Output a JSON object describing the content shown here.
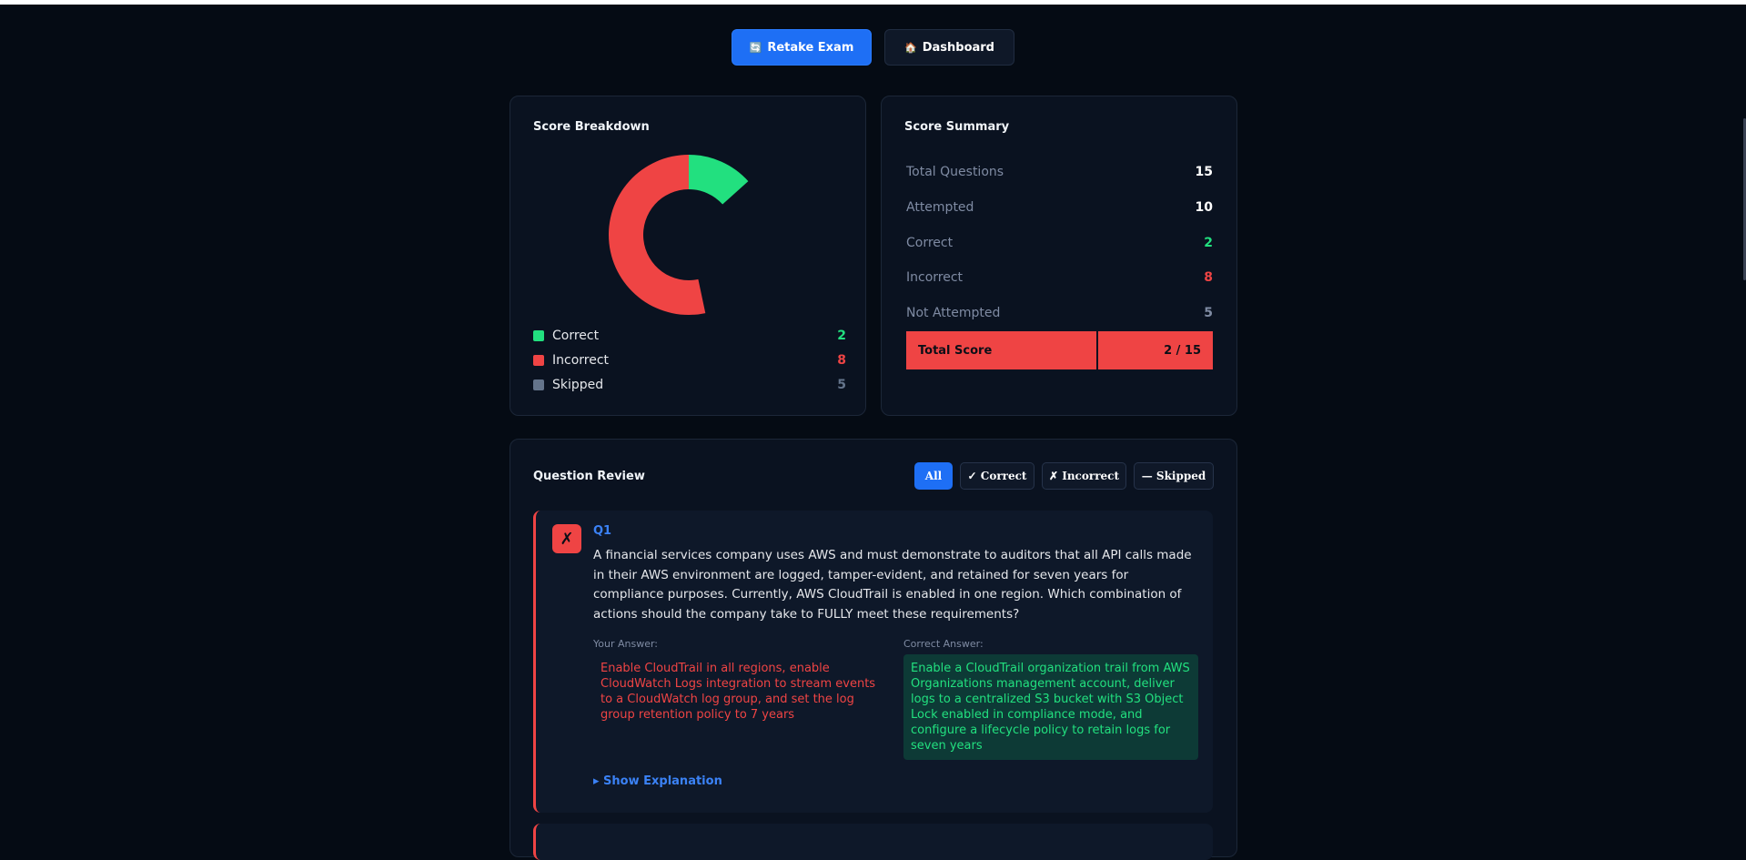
{
  "actions": {
    "retake_label": "Retake Exam",
    "dashboard_label": "Dashboard",
    "retake_icon": "🔄",
    "dashboard_icon": "🏠"
  },
  "breakdown": {
    "title": "Score Breakdown",
    "legend": [
      {
        "label": "Correct",
        "value": "2",
        "color": "#22e07f"
      },
      {
        "label": "Incorrect",
        "value": "8",
        "color": "#ef4444"
      },
      {
        "label": "Skipped",
        "value": "5",
        "color": "#64748b"
      }
    ]
  },
  "chart_data": {
    "type": "pie",
    "categories": [
      "Correct",
      "Incorrect",
      "Skipped"
    ],
    "values": [
      2,
      8,
      5
    ],
    "colors": [
      "#22e07f",
      "#ef4444",
      "#64748b"
    ]
  },
  "summary": {
    "title": "Score Summary",
    "rows": [
      {
        "label": "Total Questions",
        "value": "15",
        "color": "#ffffff"
      },
      {
        "label": "Attempted",
        "value": "10",
        "color": "#ffffff"
      },
      {
        "label": "Correct",
        "value": "2",
        "color": "#22e07f"
      },
      {
        "label": "Incorrect",
        "value": "8",
        "color": "#ef4444"
      },
      {
        "label": "Not Attempted",
        "value": "5",
        "color": "#7f8ba3"
      }
    ],
    "total_label": "Total Score",
    "total_value": "2 / 15"
  },
  "review": {
    "title": "Question Review",
    "filters": [
      "All",
      "✓ Correct",
      "✗ Incorrect",
      "— Skipped"
    ],
    "question": {
      "status_icon": "✗",
      "number": "Q1",
      "text": "A financial services company uses AWS and must demonstrate to auditors that all API calls made in their AWS environment are logged, tamper-evident, and retained for seven years for compliance purposes. Currently, AWS CloudTrail is enabled in one region. Which combination of actions should the company take to FULLY meet these requirements?",
      "your_answer_label": "Your Answer:",
      "your_answer": "Enable CloudTrail in all regions, enable CloudWatch Logs integration to stream events to a CloudWatch log group, and set the log group retention policy to 7 years",
      "correct_answer_label": "Correct Answer:",
      "correct_answer": "Enable a CloudTrail organization trail from AWS Organizations management account, deliver logs to a centralized S3 bucket with S3 Object Lock enabled in compliance mode, and configure a lifecycle policy to retain logs for seven years",
      "show_explanation": "▸ Show Explanation"
    }
  }
}
